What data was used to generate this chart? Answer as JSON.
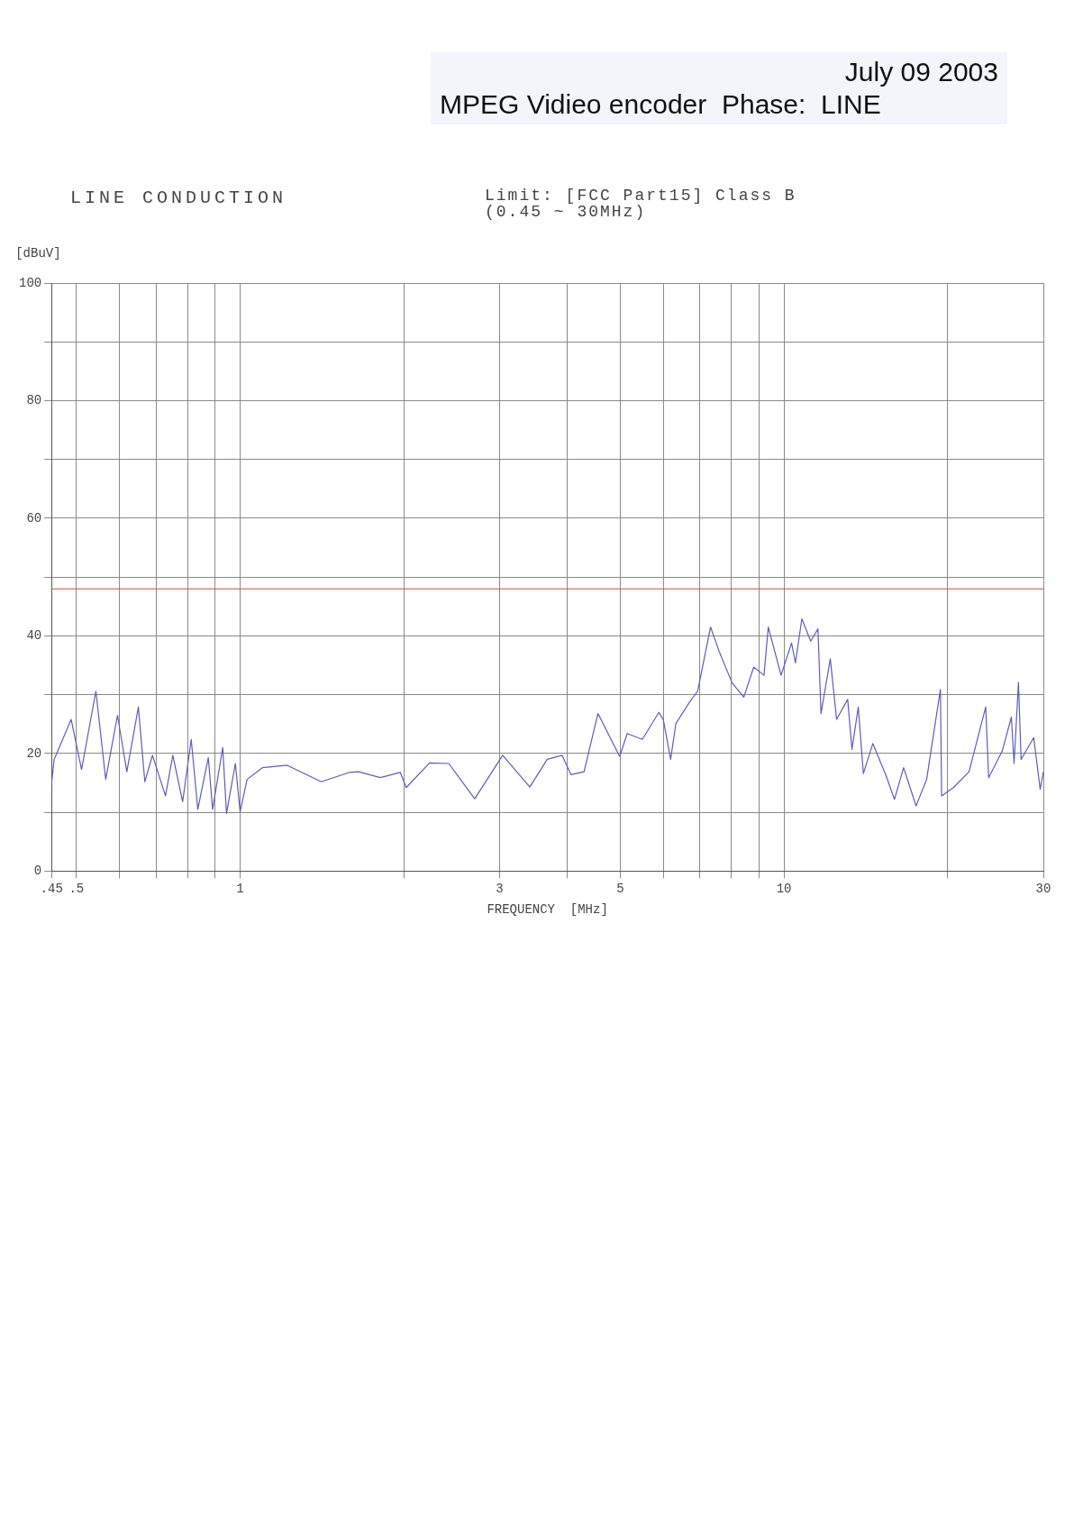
{
  "chart_data": {
    "type": "line",
    "title": "LINE CONDUCTION",
    "xlabel": "FREQUENCY  [MHz]",
    "ylabel": "[dBuV]",
    "annotations": [
      "Limit: [FCC Part15] Class B\n(0.45 ~ 30MHz)",
      "July 09 2003",
      "MPEG Vidieo encoder  Phase:  LINE"
    ],
    "log": "x",
    "grid": true,
    "marker": "none",
    "line_style": "solid",
    "xlim": [
      0.45,
      30
    ],
    "xticks": [
      {
        "value": 0.45,
        "label": ".45"
      },
      {
        "value": 0.5,
        "label": ".5"
      },
      {
        "value": 0.6,
        "label": null
      },
      {
        "value": 0.7,
        "label": null
      },
      {
        "value": 0.8,
        "label": null
      },
      {
        "value": 0.9,
        "label": null
      },
      1,
      {
        "value": 2,
        "label": null
      },
      3,
      {
        "value": 4,
        "label": null
      },
      5,
      {
        "value": 6,
        "label": null
      },
      {
        "value": 7,
        "label": null
      },
      {
        "value": 8,
        "label": null
      },
      {
        "value": 9,
        "label": null
      },
      10,
      {
        "value": 20,
        "label": null
      },
      30
    ],
    "ylim": [
      0,
      100
    ],
    "yticks": [
      0,
      {
        "value": 10,
        "label": null
      },
      20,
      {
        "value": 30,
        "label": null
      },
      40,
      {
        "value": 50,
        "label": null
      },
      60,
      {
        "value": 70,
        "label": null
      },
      80,
      {
        "value": 90,
        "label": null
      },
      100
    ],
    "ref_lines": [
      {
        "axis": "y",
        "value": 48,
        "color": "#e04040"
      }
    ],
    "series": [
      {
        "color": "#5a5fb8",
        "x": [
          0.45,
          0.455,
          0.489,
          0.511,
          0.543,
          0.566,
          0.595,
          0.619,
          0.65,
          0.668,
          0.69,
          0.729,
          0.752,
          0.784,
          0.813,
          0.836,
          0.874,
          0.89,
          0.929,
          0.944,
          0.98,
          1.0,
          1.03,
          1.1,
          1.22,
          1.41,
          1.59,
          1.65,
          1.81,
          1.97,
          2.02,
          2.23,
          2.42,
          2.7,
          3.04,
          3.41,
          3.67,
          3.91,
          4.06,
          4.29,
          4.55,
          4.99,
          5.15,
          5.49,
          5.89,
          6.0,
          6.19,
          6.33,
          6.69,
          6.94,
          7.33,
          7.6,
          8.03,
          8.44,
          8.8,
          9.19,
          9.36,
          9.88,
          10.33,
          10.5,
          10.79,
          11.2,
          11.55,
          11.7,
          12.17,
          12.5,
          13.1,
          13.34,
          13.7,
          14.0,
          14.57,
          15.4,
          15.97,
          16.6,
          17.5,
          18.3,
          19.4,
          19.5,
          20.5,
          21.9,
          23.5,
          23.8,
          25.2,
          26.2,
          26.5,
          27.0,
          27.3,
          28.8,
          29.6,
          30
        ],
        "values": [
          14.9,
          19,
          25.8,
          17.3,
          30.6,
          15.6,
          26.5,
          16.9,
          27.9,
          15.2,
          19.7,
          12.8,
          19.7,
          11.8,
          22.4,
          10.5,
          19.3,
          10.5,
          21,
          9.8,
          18.3,
          10.1,
          15.6,
          17.6,
          18,
          15.2,
          16.8,
          16.9,
          15.9,
          16.8,
          14.2,
          18.4,
          18.3,
          12.3,
          19.7,
          14.3,
          19,
          19.7,
          16.4,
          16.9,
          26.8,
          19.5,
          23.4,
          22.4,
          27,
          25.8,
          19,
          25.1,
          28.6,
          30.6,
          41.5,
          37.4,
          32,
          29.6,
          34.7,
          33.3,
          41.5,
          33.3,
          38.8,
          35.4,
          42.9,
          39.1,
          41.2,
          26.8,
          36.1,
          25.8,
          29.2,
          20.7,
          27.9,
          16.6,
          21.7,
          16.3,
          12.2,
          17.6,
          11.1,
          15.6,
          30.9,
          12.8,
          14.2,
          16.9,
          27.9,
          15.9,
          20.4,
          26.2,
          18.3,
          32.1,
          19,
          22.7,
          13.9,
          16.9
        ]
      }
    ]
  }
}
